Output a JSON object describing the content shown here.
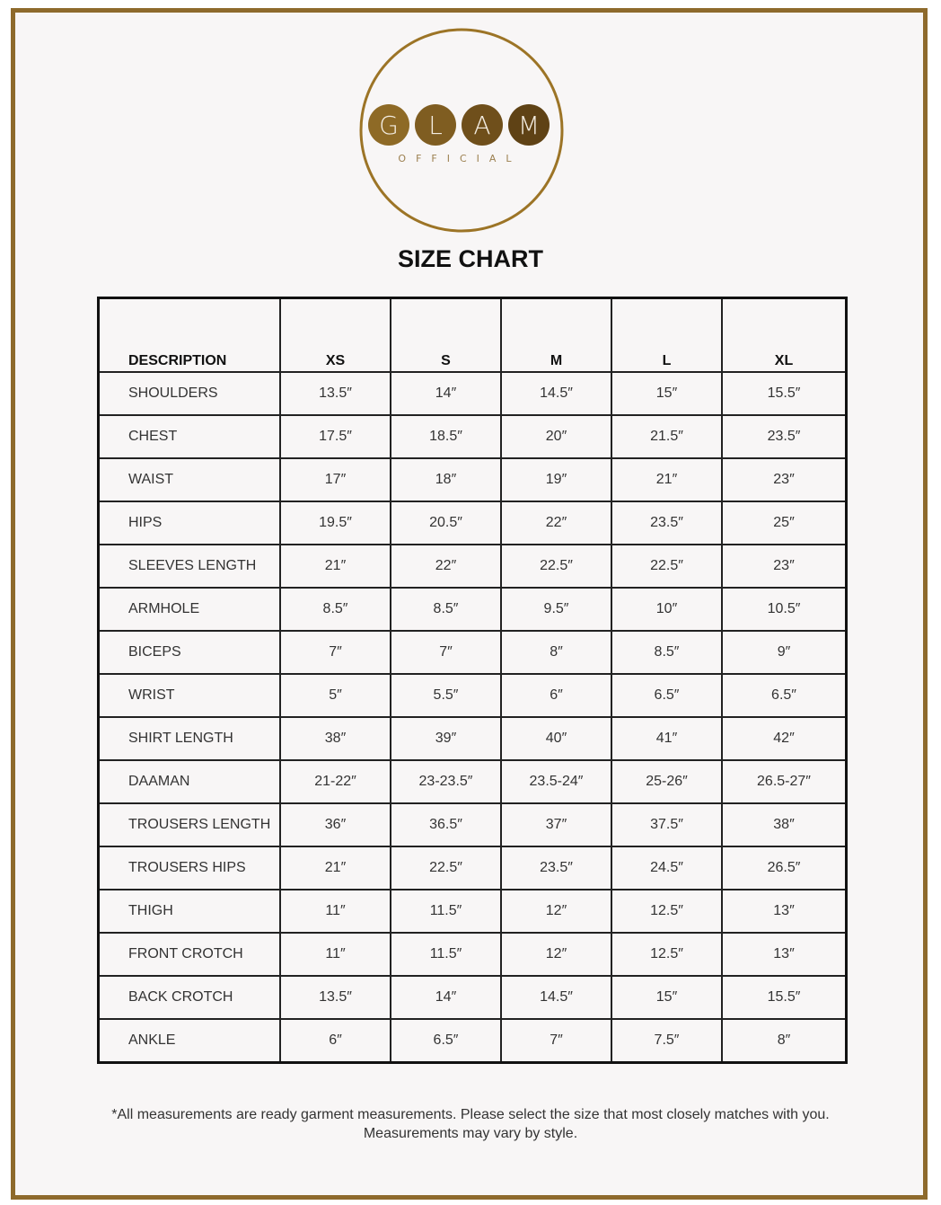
{
  "logo": {
    "letters": [
      "G",
      "L",
      "A",
      "M"
    ],
    "subtitle": "OFFICIAL",
    "brand_color": "#8e6a2c"
  },
  "title": "SIZE CHART",
  "table": {
    "headers": [
      "DESCRIPTION",
      "XS",
      "S",
      "M",
      "L",
      "XL"
    ],
    "rows": [
      [
        "SHOULDERS",
        "13.5″",
        "14″",
        "14.5″",
        "15″",
        "15.5″"
      ],
      [
        "CHEST",
        "17.5″",
        "18.5″",
        "20″",
        "21.5″",
        "23.5″"
      ],
      [
        "WAIST",
        "17″",
        "18″",
        "19″",
        "21″",
        "23″"
      ],
      [
        "HIPS",
        "19.5″",
        "20.5″",
        "22″",
        "23.5″",
        "25″"
      ],
      [
        "SLEEVES LENGTH",
        "21″",
        "22″",
        "22.5″",
        "22.5″",
        "23″"
      ],
      [
        "ARMHOLE",
        "8.5″",
        "8.5″",
        "9.5″",
        "10″",
        "10.5″"
      ],
      [
        "BICEPS",
        "7″",
        "7″",
        "8″",
        "8.5″",
        "9″"
      ],
      [
        "WRIST",
        "5″",
        "5.5″",
        "6″",
        "6.5″",
        "6.5″"
      ],
      [
        "SHIRT LENGTH",
        "38″",
        "39″",
        "40″",
        "41″",
        "42″"
      ],
      [
        "DAAMAN",
        "21-22″",
        "23-23.5″",
        "23.5-24″",
        "25-26″",
        "26.5-27″"
      ],
      [
        "TROUSERS LENGTH",
        "36″",
        "36.5″",
        "37″",
        "37.5″",
        "38″"
      ],
      [
        "TROUSERS HIPS",
        "21″",
        "22.5″",
        "23.5″",
        "24.5″",
        "26.5″"
      ],
      [
        "THIGH",
        "11″",
        "11.5″",
        "12″",
        "12.5″",
        "13″"
      ],
      [
        "FRONT CROTCH",
        "11″",
        "11.5″",
        "12″",
        "12.5″",
        "13″"
      ],
      [
        "BACK CROTCH",
        "13.5″",
        "14″",
        "14.5″",
        "15″",
        "15.5″"
      ],
      [
        "ANKLE",
        "6″",
        "6.5″",
        "7″",
        "7.5″",
        "8″"
      ]
    ]
  },
  "note": {
    "line1": "*All measurements are ready garment measurements. Please select the size that most closely matches with you.",
    "line2": "Measurements may vary by style."
  }
}
